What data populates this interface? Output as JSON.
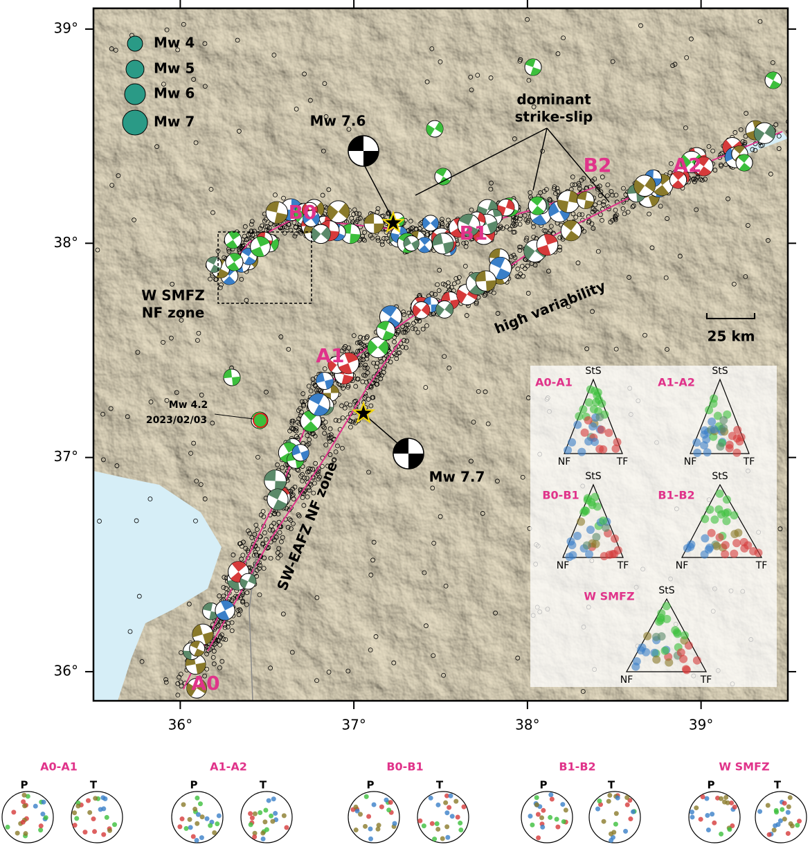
{
  "map": {
    "lon_lim": [
      35.5,
      39.5
    ],
    "lat_lim": [
      35.864,
      39.097
    ],
    "lon_ticks": [
      {
        "value": 36,
        "label": "36°"
      },
      {
        "value": 37,
        "label": "37°"
      },
      {
        "value": 38,
        "label": "38°"
      },
      {
        "value": 39,
        "label": "39°"
      }
    ],
    "lat_ticks": [
      {
        "value": 36,
        "label": "36°"
      },
      {
        "value": 37,
        "label": "37°"
      },
      {
        "value": 38,
        "label": "38°"
      },
      {
        "value": 39,
        "label": "39°"
      }
    ]
  },
  "legend": {
    "entries": [
      "Mw 4",
      "Mw 5",
      "Mw 6",
      "Mw 7"
    ]
  },
  "annotations": {
    "mainshock_1": "Mw 7.6",
    "mainshock_2": "Mw 7.7",
    "event_magnitude": "Mw 4.2",
    "event_date": "2023/02/03",
    "strike_slip": [
      "dominant",
      "strike-slip"
    ],
    "high_variability": "high variability",
    "w_smfz": [
      "W SMFZ",
      "NF zone"
    ],
    "sw_eafz": "SW-EAFZ  NF  zone",
    "scale_bar": "25 km"
  },
  "segments": [
    "A0",
    "A1",
    "A2",
    "B0",
    "B1",
    "B2"
  ],
  "ternary": {
    "panels": [
      "A0-A1",
      "A1-A2",
      "B0-B1",
      "B1-B2",
      "W SMFZ"
    ],
    "vertices": [
      "StS",
      "NF",
      "TF"
    ]
  },
  "stereonets": {
    "panels": [
      "A0-A1",
      "A1-A2",
      "B0-B1",
      "B1-B2",
      "W SMFZ"
    ],
    "axes": [
      "P",
      "T"
    ]
  }
}
